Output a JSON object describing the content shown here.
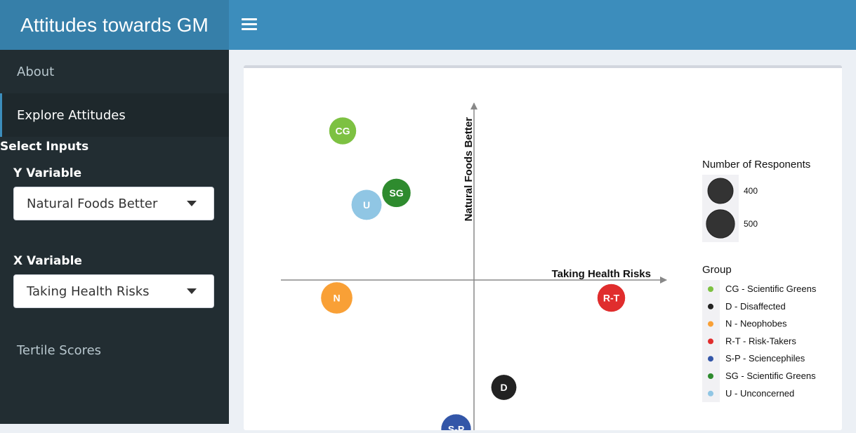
{
  "app_title": "Attitudes towards GM",
  "menu_icon": "hamburger-icon",
  "sidebar": {
    "items": [
      {
        "label": "About",
        "active": false
      },
      {
        "label": "Explore Attitudes",
        "active": true
      }
    ],
    "select_inputs_title": "Select Inputs",
    "y_variable": {
      "label": "Y Variable",
      "value": "Natural Foods Better"
    },
    "x_variable": {
      "label": "X Variable",
      "value": "Taking Health Risks"
    },
    "tertile_label": "Tertile Scores"
  },
  "chart_data": {
    "type": "scatter",
    "xlabel": "Taking Health Risks",
    "ylabel": "Natural Foods Better",
    "points": [
      {
        "label": "CG",
        "x": -1.1,
        "y": 1.25,
        "size": 380,
        "color": "#7dc142"
      },
      {
        "label": "SG",
        "x": -0.65,
        "y": 0.73,
        "size": 420,
        "color": "#2e8b2e"
      },
      {
        "label": "U",
        "x": -0.9,
        "y": 0.63,
        "size": 470,
        "color": "#90c6e4"
      },
      {
        "label": "N",
        "x": -1.15,
        "y": -0.15,
        "size": 510,
        "color": "#f9a036"
      },
      {
        "label": "R-T",
        "x": 1.15,
        "y": -0.15,
        "size": 400,
        "color": "#e02d2d"
      },
      {
        "label": "D",
        "x": 0.25,
        "y": -0.9,
        "size": 330,
        "color": "#222222"
      },
      {
        "label": "S-P",
        "x": -0.15,
        "y": -1.25,
        "size": 460,
        "color": "#3356a8"
      }
    ],
    "legend": {
      "size_title": "Number of Responents",
      "size_items": [
        {
          "label": "400",
          "value": 400
        },
        {
          "label": "500",
          "value": 500
        }
      ],
      "group_title": "Group",
      "groups": [
        {
          "label": "CG - Scientific Greens",
          "color": "#7dc142"
        },
        {
          "label": "D - Disaffected",
          "color": "#222222"
        },
        {
          "label": "N - Neophobes",
          "color": "#f9a036"
        },
        {
          "label": "R-T - Risk-Takers",
          "color": "#e02d2d"
        },
        {
          "label": "S-P - Sciencephiles",
          "color": "#3356a8"
        },
        {
          "label": "SG - Scientific Greens",
          "color": "#2e8b2e"
        },
        {
          "label": "U - Unconcerned",
          "color": "#90c6e4"
        }
      ]
    }
  }
}
